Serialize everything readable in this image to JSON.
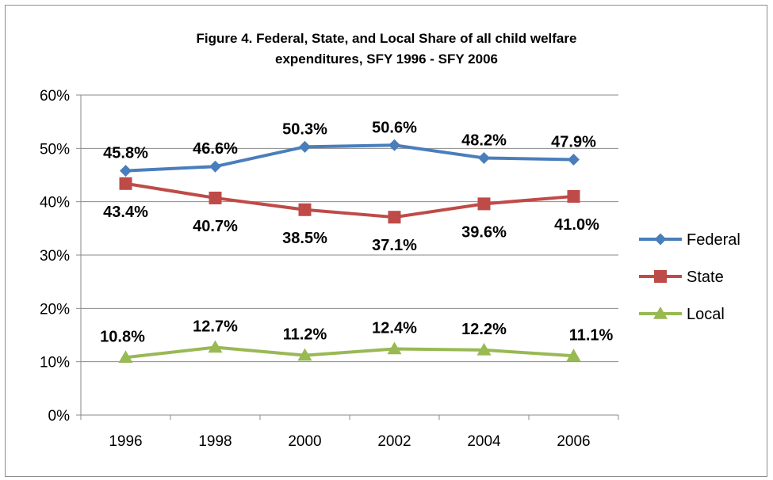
{
  "chart_data": {
    "type": "line",
    "title_lines": [
      "Figure 4.  Federal, State, and Local Share of all child welfare",
      "expenditures, SFY 1996 - SFY 2006"
    ],
    "xlabel": "",
    "ylabel": "",
    "categories": [
      "1996",
      "1998",
      "2000",
      "2002",
      "2004",
      "2006"
    ],
    "ylim": [
      0,
      60
    ],
    "yticks": [
      0,
      10,
      20,
      30,
      40,
      50,
      60
    ],
    "ytick_labels": [
      "0%",
      "10%",
      "20%",
      "30%",
      "40%",
      "50%",
      "60%"
    ],
    "grid": true,
    "legend_position": "right",
    "series": [
      {
        "name": "Federal",
        "color": "#4a7ebb",
        "marker": "diamond",
        "values": [
          45.8,
          46.6,
          50.3,
          50.6,
          48.2,
          47.9
        ],
        "labels": [
          "45.8%",
          "46.6%",
          "50.3%",
          "50.6%",
          "48.2%",
          "47.9%"
        ]
      },
      {
        "name": "State",
        "color": "#be4b48",
        "marker": "square",
        "values": [
          43.4,
          40.7,
          38.5,
          37.1,
          39.6,
          41.0
        ],
        "labels": [
          "43.4%",
          "40.7%",
          "38.5%",
          "37.1%",
          "39.6%",
          "41.0%"
        ]
      },
      {
        "name": "Local",
        "color": "#98b954",
        "marker": "triangle",
        "values": [
          10.8,
          12.7,
          11.2,
          12.4,
          12.2,
          11.1
        ],
        "labels": [
          "10.8%",
          "12.7%",
          "11.2%",
          "12.4%",
          "12.2%",
          "11.1%"
        ]
      }
    ]
  }
}
